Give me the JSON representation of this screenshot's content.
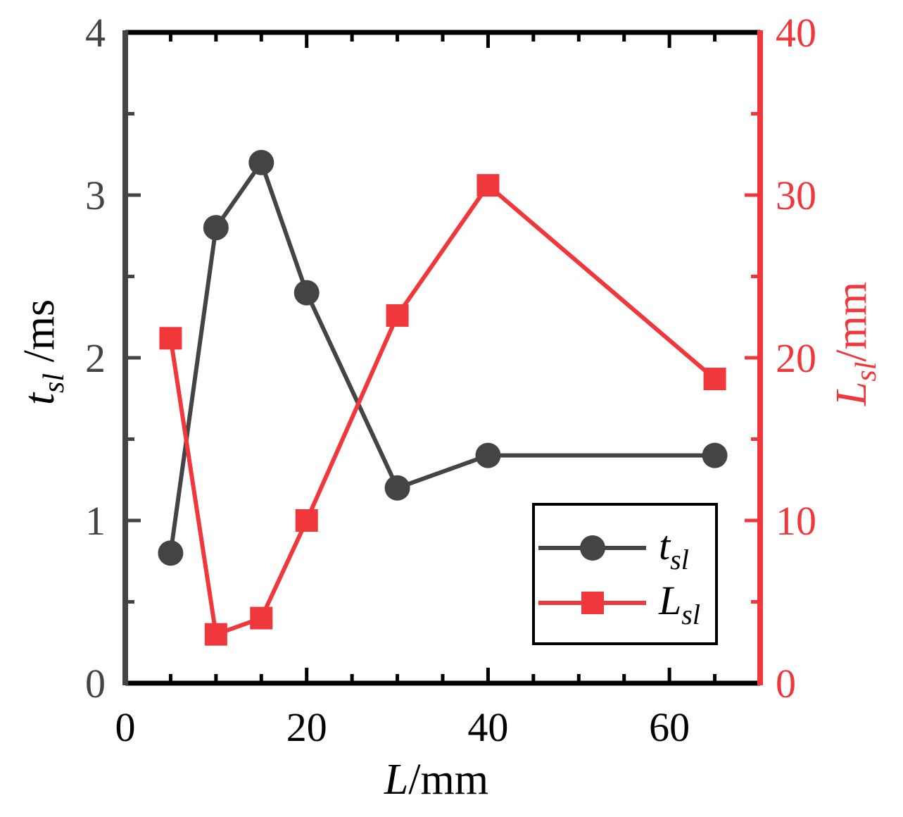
{
  "chart_data": {
    "type": "line",
    "title": "",
    "xlabel": {
      "var": "L",
      "unit": "/mm"
    },
    "ylabel_left": {
      "var": "t",
      "sub": "sl",
      "unit": " /ms"
    },
    "ylabel_right": {
      "var": "L",
      "sub": "sl",
      "unit": "/mm"
    },
    "xlim": [
      0,
      70
    ],
    "ylim_left": [
      0,
      4
    ],
    "ylim_right": [
      0,
      40
    ],
    "x_ticks": [
      0,
      20,
      40,
      60
    ],
    "x_tick_labels": [
      "0",
      "20",
      "40",
      "60"
    ],
    "y_left_ticks": [
      0,
      1,
      2,
      3,
      4
    ],
    "y_left_tick_labels": [
      "0",
      "1",
      "2",
      "3",
      "4"
    ],
    "y_right_ticks": [
      0,
      10,
      20,
      30,
      40
    ],
    "y_right_tick_labels": [
      "0",
      "10",
      "20",
      "30",
      "40"
    ],
    "legend_position": "bottom-right",
    "series": [
      {
        "name": "t_sl",
        "label_var": "t",
        "label_sub": "sl",
        "axis": "left",
        "marker": "circle",
        "color": "#444444",
        "x": [
          5,
          10,
          15,
          20,
          30,
          40,
          65
        ],
        "values": [
          0.8,
          2.8,
          3.2,
          2.4,
          1.2,
          1.4,
          1.4
        ]
      },
      {
        "name": "L_sl",
        "label_var": "L",
        "label_sub": "sl",
        "axis": "right",
        "marker": "square",
        "color": "#f0383c",
        "x": [
          5,
          10,
          15,
          20,
          30,
          40,
          65
        ],
        "values": [
          21.2,
          3,
          4,
          10,
          22.6,
          30.6,
          18.7
        ]
      }
    ]
  }
}
